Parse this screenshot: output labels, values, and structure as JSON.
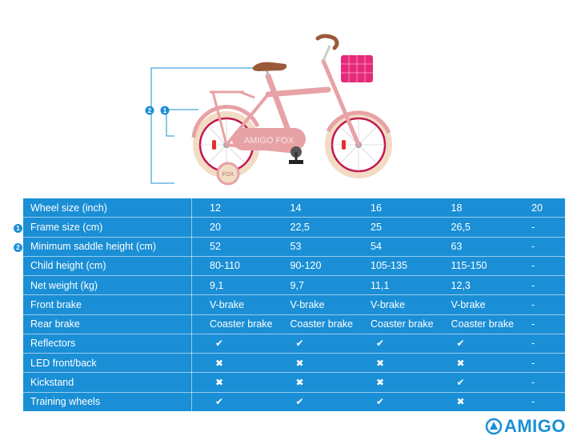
{
  "bike": {
    "frame_text": "AMIGO FOX",
    "wheel_text": "FOX",
    "frame_color": "#e7a2a5",
    "rim_color": "#c2174f",
    "tire_color": "#f2dcc4",
    "saddle_color": "#9a5a3a",
    "basket_color": "#e52a7a"
  },
  "markers": [
    "1",
    "2"
  ],
  "table": {
    "rows": [
      {
        "label": "Wheel size (inch)",
        "marker": "",
        "values": [
          "12",
          "14",
          "16",
          "18",
          "20"
        ]
      },
      {
        "label": "Frame size (cm)",
        "marker": "1",
        "values": [
          "20",
          "22,5",
          "25",
          "26,5",
          "-"
        ]
      },
      {
        "label": "Minimum saddle height (cm)",
        "marker": "2",
        "values": [
          "52",
          "53",
          "54",
          "63",
          "-"
        ]
      },
      {
        "label": "Child height (cm)",
        "marker": "",
        "values": [
          "80-110",
          "90-120",
          "105-135",
          "115-150",
          "-"
        ]
      },
      {
        "label": "Net weight (kg)",
        "marker": "",
        "values": [
          "9,1",
          "9,7",
          "11,1",
          "12,3",
          "-"
        ]
      },
      {
        "label": "Front brake",
        "marker": "",
        "values": [
          "V-brake",
          "V-brake",
          "V-brake",
          "V-brake",
          "-"
        ]
      },
      {
        "label": "Rear brake",
        "marker": "",
        "values": [
          "Coaster brake",
          "Coaster brake",
          "Coaster brake",
          "Coaster brake",
          "-"
        ]
      },
      {
        "label": "Reflectors",
        "marker": "",
        "values": [
          "check",
          "check",
          "check",
          "check",
          "-"
        ]
      },
      {
        "label": "LED front/back",
        "marker": "",
        "values": [
          "cross",
          "cross",
          "cross",
          "cross",
          "-"
        ]
      },
      {
        "label": "Kickstand",
        "marker": "",
        "values": [
          "cross",
          "cross",
          "cross",
          "check",
          "-"
        ]
      },
      {
        "label": "Training wheels",
        "marker": "",
        "values": [
          "check",
          "check",
          "check",
          "cross",
          "-"
        ]
      }
    ]
  },
  "icons": {
    "check": "✔",
    "cross": "✖"
  },
  "brand": {
    "name": "AMIGO",
    "color": "#1a8fd6"
  }
}
